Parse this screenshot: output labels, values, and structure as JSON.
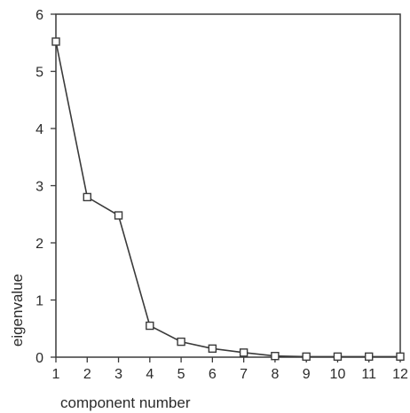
{
  "chart_data": {
    "type": "line",
    "title": "",
    "xlabel": "component number",
    "ylabel": "eigenvalue",
    "x": [
      1,
      2,
      3,
      4,
      5,
      6,
      7,
      8,
      9,
      10,
      11,
      12
    ],
    "series": [
      {
        "values": [
          5.52,
          2.8,
          2.48,
          0.55,
          0.27,
          0.15,
          0.08,
          0.02,
          0.01,
          0.01,
          0.01,
          0.01
        ],
        "marker": "open-square",
        "color": "#3a3a3a"
      }
    ],
    "xticks": [
      "1",
      "2",
      "3",
      "4",
      "5",
      "6",
      "7",
      "8",
      "9",
      "10",
      "11",
      "12"
    ],
    "yticks": [
      "0",
      "1",
      "2",
      "3",
      "4",
      "5",
      "6"
    ],
    "xlim": [
      1,
      12
    ],
    "ylim": [
      0,
      6
    ],
    "grid": false,
    "legend": "none"
  }
}
